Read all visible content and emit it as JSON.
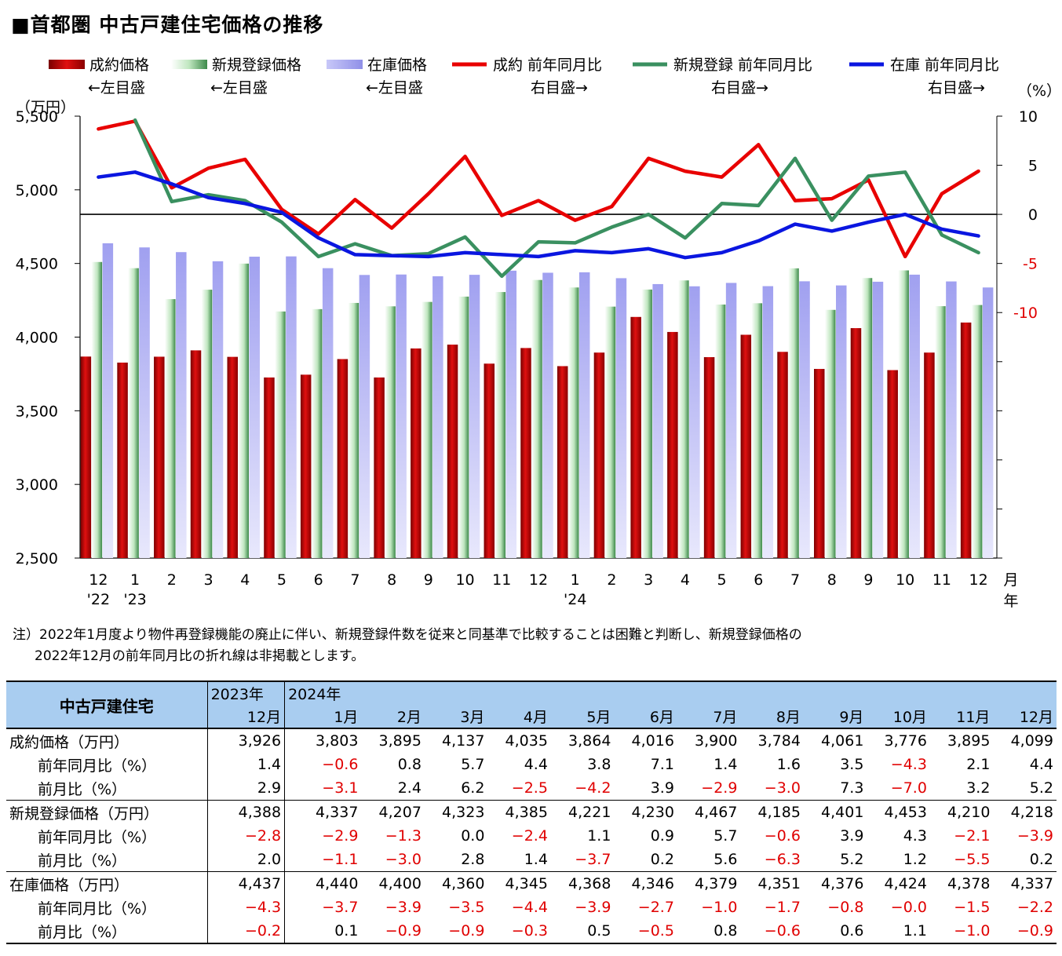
{
  "title": "■首都圏 中古戸建住宅価格の推移",
  "legend": [
    {
      "label": "成約価格",
      "sub": "←左目盛",
      "kind": "bar",
      "color": "#d00000"
    },
    {
      "label": "新規登録価格",
      "sub": "←左目盛",
      "kind": "bar",
      "color": "#8fcf8f"
    },
    {
      "label": "在庫価格",
      "sub": "←左目盛",
      "kind": "bar",
      "color": "#a8a8f0"
    },
    {
      "label": "成約 前年同月比",
      "sub": "右目盛→",
      "kind": "line",
      "color": "#e80000"
    },
    {
      "label": "新規登録 前年同月比",
      "sub": "右目盛→",
      "kind": "line",
      "color": "#3a9060"
    },
    {
      "label": "在庫 前年同月比",
      "sub": "右目盛→",
      "kind": "line",
      "color": "#0a16e0"
    }
  ],
  "chart_data": {
    "type": "bar",
    "categories": [
      "12",
      "1",
      "2",
      "3",
      "4",
      "5",
      "6",
      "7",
      "8",
      "9",
      "10",
      "11",
      "12",
      "1",
      "2",
      "3",
      "4",
      "5",
      "6",
      "7",
      "8",
      "9",
      "10",
      "11",
      "12"
    ],
    "year_marks": [
      {
        "index": 0,
        "label": "'22"
      },
      {
        "index": 1,
        "label": "'23"
      },
      {
        "index": 13,
        "label": "'24"
      }
    ],
    "x_unit_month": "月",
    "x_unit_year": "年",
    "left_axis": {
      "unit": "（万円）",
      "min": 2500,
      "max": 5500,
      "ticks": [
        2500,
        3000,
        3500,
        4000,
        4500,
        5000,
        5500
      ],
      "tick_labels": [
        "2,500",
        "3,000",
        "3,500",
        "4,000",
        "4,500",
        "5,000",
        "5,500"
      ]
    },
    "right_axis": {
      "unit": "（%）",
      "min": -35,
      "max": 10,
      "ticks": [
        10,
        5,
        0,
        -5,
        -10
      ],
      "tick_labels": [
        "10",
        "5",
        "0",
        "-5",
        "-10"
      ],
      "zero_line": true
    },
    "bar_series": [
      {
        "name": "成約価格",
        "values": [
          3868,
          3827,
          3867,
          3910,
          3866,
          3726,
          3745,
          3851,
          3726,
          3923,
          3949,
          3820,
          3926,
          3803,
          3895,
          4137,
          4035,
          3864,
          4016,
          3900,
          3784,
          4061,
          3776,
          3895,
          4099
        ]
      },
      {
        "name": "新規登録価格",
        "values": [
          4510,
          4468,
          4258,
          4322,
          4499,
          4174,
          4190,
          4232,
          4209,
          4239,
          4275,
          4306,
          4388,
          4337,
          4207,
          4323,
          4385,
          4221,
          4230,
          4467,
          4185,
          4401,
          4453,
          4210,
          4218
        ]
      },
      {
        "name": "在庫価格",
        "values": [
          4637,
          4609,
          4577,
          4515,
          4546,
          4548,
          4468,
          4422,
          4425,
          4413,
          4423,
          4451,
          4437,
          4440,
          4400,
          4360,
          4345,
          4368,
          4346,
          4379,
          4351,
          4376,
          4424,
          4378,
          4337
        ]
      }
    ],
    "line_series": [
      {
        "name": "成約 前年同月比",
        "values": [
          8.7,
          9.5,
          2.7,
          4.7,
          5.6,
          0.5,
          -2.0,
          1.5,
          -1.4,
          2.1,
          5.9,
          -0.1,
          1.4,
          -0.6,
          0.8,
          5.7,
          4.4,
          3.8,
          7.1,
          1.4,
          1.6,
          3.5,
          -4.3,
          2.1,
          4.4
        ]
      },
      {
        "name": "新規登録 前年同月比",
        "values": [
          null,
          9.6,
          1.3,
          2.0,
          1.4,
          -0.8,
          -4.3,
          -3.0,
          -4.2,
          -4.0,
          -2.3,
          -6.3,
          -2.8,
          -2.9,
          -1.3,
          0.0,
          -2.4,
          1.1,
          0.9,
          5.7,
          -0.6,
          3.9,
          4.3,
          -2.1,
          -3.9
        ]
      },
      {
        "name": "在庫 前年同月比",
        "values": [
          3.8,
          4.3,
          3.1,
          1.7,
          1.1,
          0.2,
          -2.4,
          -4.1,
          -4.2,
          -4.3,
          -3.9,
          -4.1,
          -4.3,
          -3.7,
          -3.9,
          -3.5,
          -4.4,
          -3.9,
          -2.7,
          -1.0,
          -1.7,
          -0.8,
          -0.0,
          -1.5,
          -2.2
        ]
      }
    ]
  },
  "note": {
    "line1": "注）2022年1月度より物件再登録機能の廃止に伴い、新規登録件数を従来と同基準で比較することは困難と判断し、新規登録価格の",
    "line2": "2022年12月の前年同月比の折れ線は非掲載とします。"
  },
  "table": {
    "header_label": "中古戸建住宅",
    "year_row": [
      "2023年",
      "2024年",
      "",
      "",
      "",
      "",
      "",
      "",
      "",
      "",
      "",
      "",
      ""
    ],
    "month_row": [
      "12月",
      "1月",
      "2月",
      "3月",
      "4月",
      "5月",
      "6月",
      "7月",
      "8月",
      "9月",
      "10月",
      "11月",
      "12月"
    ],
    "rows": [
      {
        "label": "成約価格（万円）",
        "sub": false,
        "group_start": true,
        "values": [
          "3,926",
          "3,803",
          "3,895",
          "4,137",
          "4,035",
          "3,864",
          "4,016",
          "3,900",
          "3,784",
          "4,061",
          "3,776",
          "3,895",
          "4,099"
        ]
      },
      {
        "label": "前年同月比（%）",
        "sub": true,
        "values": [
          "1.4",
          "−0.6",
          "0.8",
          "5.7",
          "4.4",
          "3.8",
          "7.1",
          "1.4",
          "1.6",
          "3.5",
          "−4.3",
          "2.1",
          "4.4"
        ]
      },
      {
        "label": "前月比（%）",
        "sub": true,
        "values": [
          "2.9",
          "−3.1",
          "2.4",
          "6.2",
          "−2.5",
          "−4.2",
          "3.9",
          "−2.9",
          "−3.0",
          "7.3",
          "−7.0",
          "3.2",
          "5.2"
        ]
      },
      {
        "label": "新規登録価格（万円）",
        "sub": false,
        "group_start": true,
        "values": [
          "4,388",
          "4,337",
          "4,207",
          "4,323",
          "4,385",
          "4,221",
          "4,230",
          "4,467",
          "4,185",
          "4,401",
          "4,453",
          "4,210",
          "4,218"
        ]
      },
      {
        "label": "前年同月比（%）",
        "sub": true,
        "values": [
          "−2.8",
          "−2.9",
          "−1.3",
          "0.0",
          "−2.4",
          "1.1",
          "0.9",
          "5.7",
          "−0.6",
          "3.9",
          "4.3",
          "−2.1",
          "−3.9"
        ]
      },
      {
        "label": "前月比（%）",
        "sub": true,
        "values": [
          "2.0",
          "−1.1",
          "−3.0",
          "2.8",
          "1.4",
          "−3.7",
          "0.2",
          "5.6",
          "−6.3",
          "5.2",
          "1.2",
          "−5.5",
          "0.2"
        ]
      },
      {
        "label": "在庫価格（万円）",
        "sub": false,
        "group_start": true,
        "values": [
          "4,437",
          "4,440",
          "4,400",
          "4,360",
          "4,345",
          "4,368",
          "4,346",
          "4,379",
          "4,351",
          "4,376",
          "4,424",
          "4,378",
          "4,337"
        ]
      },
      {
        "label": "前年同月比（%）",
        "sub": true,
        "values": [
          "−4.3",
          "−3.7",
          "−3.9",
          "−3.5",
          "−4.4",
          "−3.9",
          "−2.7",
          "−1.0",
          "−1.7",
          "−0.8",
          "−0.0",
          "−1.5",
          "−2.2"
        ]
      },
      {
        "label": "前月比（%）",
        "sub": true,
        "values": [
          "−0.2",
          "0.1",
          "−0.9",
          "−0.9",
          "−0.3",
          "0.5",
          "−0.5",
          "0.8",
          "−0.6",
          "0.6",
          "1.1",
          "−1.0",
          "−0.9"
        ]
      }
    ]
  }
}
